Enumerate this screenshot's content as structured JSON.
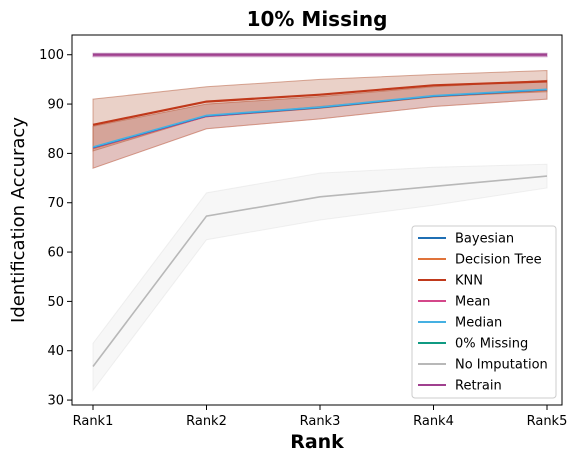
{
  "chart_data": {
    "type": "line",
    "title": "10% Missing",
    "xlabel": "Rank",
    "ylabel": "Identification Accuracy",
    "categories": [
      "Rank1",
      "Rank2",
      "Rank3",
      "Rank4",
      "Rank5"
    ],
    "yticks": [
      30,
      40,
      50,
      60,
      70,
      80,
      90,
      100
    ],
    "ylim": [
      29,
      104
    ],
    "legend_position": "lower-right",
    "grid": false,
    "series": [
      {
        "name": "Bayesian",
        "color": "#1f6fb4",
        "values": [
          81.2,
          87.6,
          89.3,
          91.6,
          92.9
        ],
        "lower": [
          77.0,
          85.0,
          87.0,
          89.5,
          91.0
        ],
        "upper": [
          85.5,
          90.0,
          91.5,
          93.5,
          94.8
        ],
        "band_color": "#9a8fd0"
      },
      {
        "name": "Decision Tree",
        "color": "#e0733a",
        "values": [
          81.0,
          87.5,
          89.2,
          91.5,
          92.8
        ],
        "lower": [
          77.0,
          85.0,
          87.0,
          89.5,
          91.0
        ],
        "upper": [
          85.5,
          90.0,
          91.5,
          93.5,
          94.8
        ],
        "band_color": null
      },
      {
        "name": "KNN",
        "color": "#c0391b",
        "values": [
          85.8,
          90.5,
          91.9,
          93.8,
          94.6
        ],
        "lower": [
          80.5,
          87.5,
          89.5,
          91.5,
          92.5
        ],
        "upper": [
          91.0,
          93.5,
          95.0,
          96.0,
          96.8
        ],
        "band_color": "#b55a3a"
      },
      {
        "name": "Mean",
        "color": "#d4478a",
        "values": [
          81.1,
          87.5,
          89.3,
          91.6,
          92.9
        ],
        "lower": null,
        "upper": null,
        "band_color": null
      },
      {
        "name": "Median",
        "color": "#45b0e2",
        "values": [
          81.3,
          87.7,
          89.4,
          91.7,
          93.0
        ],
        "lower": null,
        "upper": null,
        "band_color": null
      },
      {
        "name": "0% Missing",
        "color": "#0f9a82",
        "values": [
          100,
          100,
          100,
          100,
          100
        ],
        "lower": null,
        "upper": null,
        "band_color": null
      },
      {
        "name": "No Imputation",
        "color": "#b8b8b8",
        "values": [
          36.8,
          67.3,
          71.2,
          73.3,
          75.4
        ],
        "lower": [
          32.0,
          62.5,
          66.5,
          69.5,
          73.0
        ],
        "upper": [
          41.5,
          72.0,
          76.0,
          77.2,
          77.8
        ],
        "band_color": "#d8d8d8"
      },
      {
        "name": "Retrain",
        "color": "#a0408f",
        "values": [
          100,
          100,
          100,
          100,
          100
        ],
        "lower": [
          99.6,
          99.6,
          99.6,
          99.6,
          99.6
        ],
        "upper": [
          100.3,
          100.3,
          100.3,
          100.3,
          100.3
        ],
        "band_color": null
      }
    ]
  }
}
